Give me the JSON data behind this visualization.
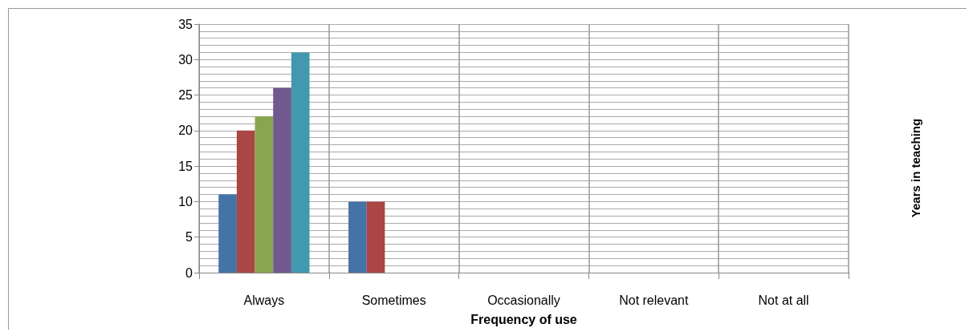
{
  "chart_data": {
    "type": "bar",
    "xlabel": "Frequency of use",
    "annotations": [
      "Years in teaching"
    ],
    "categories": [
      "Always",
      "Sometimes",
      "Occasionally",
      "Not relevant",
      "Not at all"
    ],
    "series": [
      {
        "color": "#4572a7",
        "values": [
          11,
          10,
          0,
          0,
          0
        ]
      },
      {
        "color": "#aa4643",
        "values": [
          20,
          10,
          0,
          0,
          0
        ]
      },
      {
        "color": "#89a54e",
        "values": [
          22,
          0,
          0,
          0,
          0
        ]
      },
      {
        "color": "#71588f",
        "values": [
          26,
          0,
          0,
          0,
          0
        ]
      },
      {
        "color": "#4198af",
        "values": [
          31,
          0,
          0,
          0,
          0
        ]
      }
    ],
    "ylim": [
      0,
      35
    ],
    "yticks": [
      0,
      5,
      10,
      15,
      20,
      25,
      30,
      35
    ],
    "grid": true
  }
}
